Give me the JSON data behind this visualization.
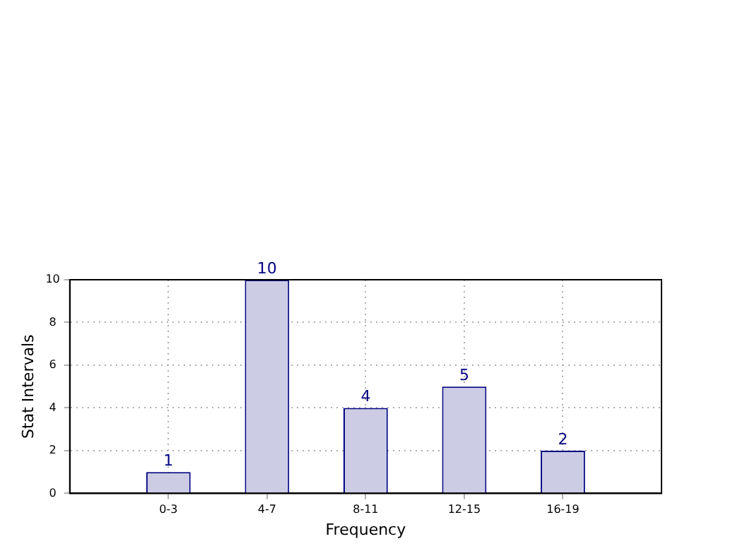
{
  "chart_data": {
    "type": "bar",
    "xlabel": "Frequency",
    "ylabel": "Stat Intervals",
    "categories": [
      "0-3",
      "4-7",
      "8-11",
      "12-15",
      "16-19"
    ],
    "values": [
      1,
      10,
      4,
      5,
      2
    ],
    "color": "#ccccE5",
    "ylim": [
      0,
      10
    ],
    "yticks": [
      0,
      2,
      4,
      6,
      8,
      10
    ],
    "grid": true,
    "data_labels": true,
    "legend": false
  }
}
